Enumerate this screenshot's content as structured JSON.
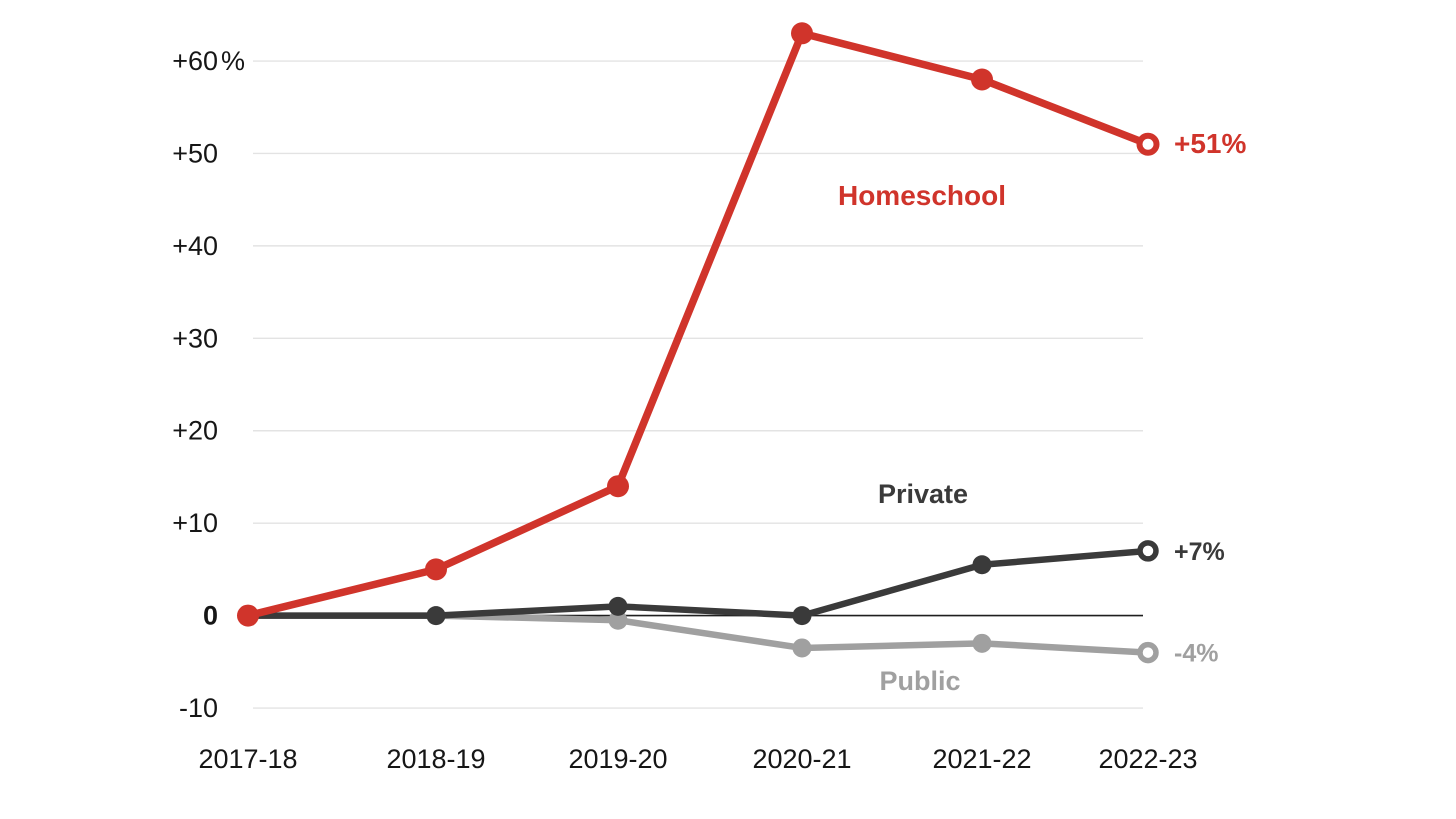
{
  "page": {
    "background_color": "#ffffff"
  },
  "chart_data": {
    "type": "line",
    "title": "",
    "xlabel": "",
    "ylabel": "",
    "categories": [
      "2017-18",
      "2018-19",
      "2019-20",
      "2020-21",
      "2021-22",
      "2022-23"
    ],
    "series": [
      {
        "name": "Homeschool",
        "color": "#d0342b",
        "values": [
          0,
          5,
          14,
          63,
          58,
          51
        ],
        "end_label": "+51%",
        "end_marker": "open-circle"
      },
      {
        "name": "Private",
        "color": "#3a3a3a",
        "values": [
          0,
          0,
          1,
          0,
          5.5,
          7
        ],
        "end_label": "+7%",
        "end_marker": "open-circle"
      },
      {
        "name": "Public",
        "color": "#a0a0a0",
        "values": [
          0,
          0,
          -0.5,
          -3.5,
          -3,
          -4
        ],
        "end_label": "-4%",
        "end_marker": "open-circle"
      }
    ],
    "y_axis": {
      "ticks": [
        {
          "label": "+60",
          "suffix": "%",
          "value": 60,
          "bold": false
        },
        {
          "label": "+50",
          "value": 50,
          "bold": false
        },
        {
          "label": "+40",
          "value": 40,
          "bold": false
        },
        {
          "label": "+30",
          "value": 30,
          "bold": false
        },
        {
          "label": "+20",
          "value": 20,
          "bold": false
        },
        {
          "label": "+10",
          "value": 10,
          "bold": false
        },
        {
          "label": "0",
          "value": 0,
          "bold": true
        },
        {
          "label": "-10",
          "value": -10,
          "bold": false
        }
      ],
      "range": [
        -10,
        66
      ],
      "zero_baseline": true
    },
    "grid": true,
    "legend_position": "inline-labels",
    "colors": {
      "gridline": "#e3e3e3",
      "zero_line": "#1f1f1f",
      "tick_text": "#161616"
    }
  }
}
